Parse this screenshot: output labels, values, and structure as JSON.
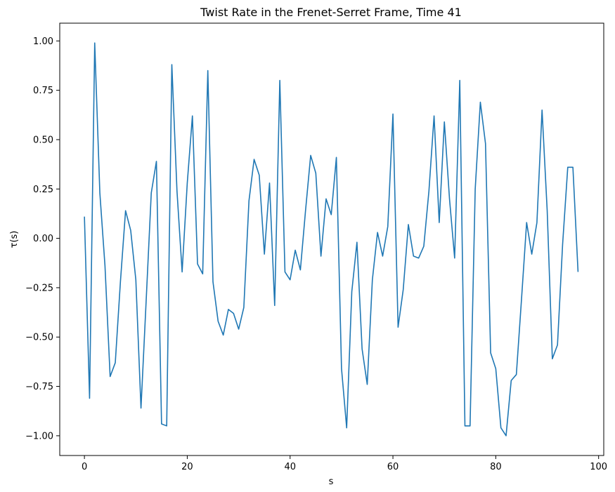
{
  "chart_data": {
    "type": "line",
    "title": "Twist Rate in the Frenet-Serret Frame, Time 41",
    "xlabel": "s",
    "ylabel": "τ(s)",
    "xlim": [
      -4.8,
      101
    ],
    "ylim": [
      -1.1,
      1.09
    ],
    "xticks": [
      0,
      20,
      40,
      60,
      80,
      100
    ],
    "xtick_labels": [
      "0",
      "20",
      "40",
      "60",
      "80",
      "100"
    ],
    "yticks": [
      -1.0,
      -0.75,
      -0.5,
      -0.25,
      0.0,
      0.25,
      0.5,
      0.75,
      1.0
    ],
    "ytick_labels": [
      "−1.00",
      "−0.75",
      "−0.50",
      "−0.25",
      "0.00",
      "0.25",
      "0.50",
      "0.75",
      "1.00"
    ],
    "grid": false,
    "line_color": "#1f77b4",
    "series": [
      {
        "x": [
          0,
          1,
          2,
          3,
          4,
          5,
          6,
          7,
          8,
          9,
          10,
          11,
          12,
          13,
          14,
          15,
          16,
          17,
          18,
          19,
          20,
          21,
          22,
          23,
          24,
          25,
          26,
          27,
          28,
          29,
          30,
          31,
          32,
          33,
          34,
          35,
          36,
          37,
          38,
          39,
          40,
          41,
          42,
          43,
          44,
          45,
          46,
          47,
          48,
          49,
          50,
          51,
          52,
          53,
          54,
          55,
          56,
          57,
          58,
          59,
          60,
          61,
          62,
          63,
          64,
          65,
          66,
          67,
          68,
          69,
          70,
          71,
          72,
          73,
          74,
          75,
          76,
          77,
          78,
          79,
          80,
          81,
          82,
          83,
          84,
          85,
          86,
          87,
          88,
          89,
          90,
          91,
          92,
          93,
          94,
          95,
          96
        ],
        "values": [
          0.11,
          -0.81,
          0.99,
          0.23,
          -0.14,
          -0.7,
          -0.63,
          -0.22,
          0.14,
          0.04,
          -0.21,
          -0.86,
          -0.32,
          0.23,
          0.39,
          -0.94,
          -0.95,
          0.88,
          0.24,
          -0.17,
          0.28,
          0.62,
          -0.13,
          -0.18,
          0.85,
          -0.22,
          -0.42,
          -0.49,
          -0.36,
          -0.38,
          -0.46,
          -0.35,
          0.19,
          0.4,
          0.32,
          -0.08,
          0.28,
          -0.34,
          0.8,
          -0.17,
          -0.21,
          -0.06,
          -0.16,
          0.14,
          0.42,
          0.33,
          -0.09,
          0.2,
          0.12,
          0.41,
          -0.66,
          -0.96,
          -0.27,
          -0.02,
          -0.56,
          -0.74,
          -0.21,
          0.03,
          -0.09,
          0.06,
          0.63,
          -0.45,
          -0.26,
          0.07,
          -0.09,
          -0.1,
          -0.04,
          0.24,
          0.62,
          0.08,
          0.59,
          0.2,
          -0.1,
          0.8,
          -0.95,
          -0.95,
          0.25,
          0.69,
          0.48,
          -0.58,
          -0.66,
          -0.96,
          -1.0,
          -0.72,
          -0.69,
          -0.31,
          0.08,
          -0.08,
          0.08,
          0.65,
          0.14,
          -0.61,
          -0.54,
          -0.03,
          0.36,
          0.36,
          -0.17
        ]
      }
    ]
  }
}
